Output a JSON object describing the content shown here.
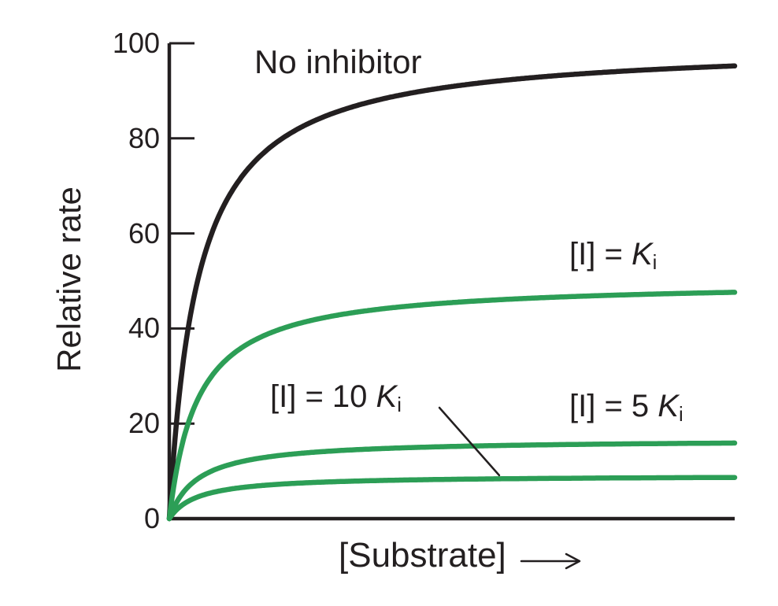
{
  "figure": {
    "background": "#ffffff",
    "colors": {
      "axis": "#231f20",
      "text": "#231f20",
      "no_inhibitor_curve": "#231f20",
      "inhibitor_curves": "#2c9e56"
    }
  },
  "chart_data": {
    "type": "line",
    "title": "",
    "xlabel": "[Substrate]",
    "ylabel": "Relative rate",
    "x_axis": {
      "label": "[Substrate]",
      "arrow": true,
      "tick_labels": "none",
      "s_over_km_max": 20
    },
    "y_axis": {
      "label": "Relative rate",
      "range": [
        0,
        100
      ],
      "ticks": [
        0,
        20,
        40,
        60,
        80,
        100
      ]
    },
    "grid": "off",
    "legend": "inline-annotations",
    "model": "Michaelis-Menten: v = vmax_app * s / (1 + s), s = [S]/Km, noncompetitive inhibition (Km unchanged, vmax reduced)",
    "s_samples": [
      0,
      0.5,
      1,
      2,
      4,
      8,
      12,
      16,
      20
    ],
    "series": [
      {
        "id": "no-inhibitor",
        "name": "No inhibitor",
        "color": "#231f20",
        "vmax_app": 100,
        "v": [
          0,
          33.3,
          50.0,
          66.7,
          80.0,
          88.9,
          92.3,
          94.1,
          95.2
        ]
      },
      {
        "id": "ki",
        "name": "[I] = Ki",
        "color": "#2c9e56",
        "vmax_app": 50,
        "v": [
          0,
          16.7,
          25.0,
          33.3,
          40.0,
          44.4,
          46.2,
          47.1,
          47.6
        ]
      },
      {
        "id": "ki-5",
        "name": "[I] = 5 Ki",
        "color": "#2c9e56",
        "vmax_app": 16.7,
        "v": [
          0,
          5.6,
          8.4,
          11.1,
          13.4,
          14.8,
          15.4,
          15.7,
          15.9
        ]
      },
      {
        "id": "ki-10",
        "name": "[I] = 10 Ki",
        "color": "#2c9e56",
        "vmax_app": 9.1,
        "v": [
          0,
          3.0,
          4.6,
          6.1,
          7.3,
          8.1,
          8.4,
          8.6,
          8.7
        ]
      }
    ]
  },
  "annotations": {
    "no_inhibitor": "No inhibitor",
    "ki": {
      "pre": "[I] = ",
      "k": "K",
      "sub": "i"
    },
    "ki10": {
      "pre": "[I] = 10 ",
      "k": "K",
      "sub": "i"
    },
    "ki5": {
      "pre": "[I] = 5 ",
      "k": "K",
      "sub": "i"
    }
  }
}
